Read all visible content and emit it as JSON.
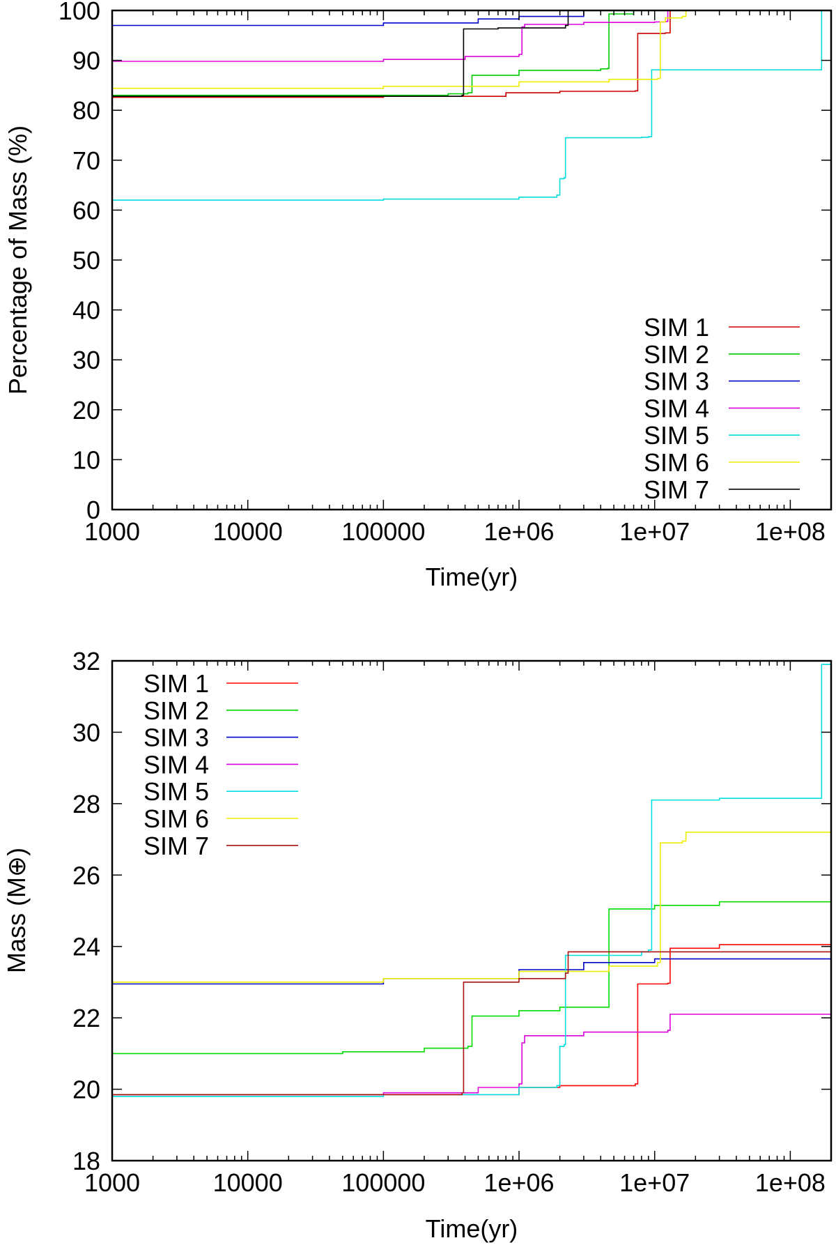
{
  "chart_data": [
    {
      "type": "line",
      "xlabel": "Time(yr)",
      "ylabel": "Percentage of Mass (%)",
      "xscale": "log",
      "xlim": [
        1000,
        200000000
      ],
      "ylim": [
        0,
        100
      ],
      "xticks": [
        1000,
        10000,
        100000,
        1000000,
        10000000,
        100000000
      ],
      "xtick_labels": [
        "1000",
        "10000",
        "100000",
        "1e+06",
        "1e+07",
        "1e+08"
      ],
      "yticks": [
        0,
        10,
        20,
        30,
        40,
        50,
        60,
        70,
        80,
        90,
        100
      ],
      "ytick_labels": [
        "0",
        "10",
        "20",
        "30",
        "40",
        "50",
        "60",
        "70",
        "80",
        "90",
        "100"
      ],
      "legend": "bottom-right",
      "grid": false,
      "series": [
        {
          "name": "SIM 1",
          "color": "#cc0000",
          "x": [
            1000,
            100000,
            800000,
            2000000,
            7200000,
            7500000,
            12000000,
            13000000,
            17000000,
            200000000
          ],
          "y": [
            82.6,
            82.8,
            83.5,
            83.8,
            83.9,
            95.4,
            95.5,
            100,
            100,
            100
          ]
        },
        {
          "name": "SIM 2",
          "color": "#00cc00",
          "x": [
            1000,
            300000,
            420000,
            450000,
            1000000,
            4000000,
            4500000,
            4600000,
            7000000,
            200000000
          ],
          "y": [
            83.0,
            83.3,
            83.5,
            87.0,
            88.0,
            88.3,
            88.4,
            99.3,
            100,
            100
          ]
        },
        {
          "name": "SIM 3",
          "color": "#0000cc",
          "x": [
            1000,
            20000,
            100000,
            500000,
            1000000,
            3000000,
            200000000
          ],
          "y": [
            97.0,
            97.0,
            97.5,
            98.3,
            98.8,
            100,
            100
          ]
        },
        {
          "name": "SIM 4",
          "color": "#dd00dd",
          "x": [
            1000,
            100000,
            400000,
            1000000,
            1050000,
            1100000,
            3000000,
            10000000,
            12000000,
            12500000,
            200000000
          ],
          "y": [
            89.8,
            90.2,
            90.8,
            91.2,
            96.7,
            97.2,
            97.6,
            97.7,
            97.8,
            100,
            100
          ]
        },
        {
          "name": "SIM 5",
          "color": "#00dddd",
          "x": [
            1000,
            100000,
            1000000,
            1900000,
            2000000,
            2150000,
            2200000,
            8000000,
            9000000,
            9500000,
            160000000,
            170000000,
            200000000
          ],
          "y": [
            62.0,
            62.2,
            62.6,
            63.0,
            66.3,
            66.5,
            74.5,
            74.6,
            74.7,
            88.1,
            88.1,
            100,
            100
          ]
        },
        {
          "name": "SIM 6",
          "color": "#eeee00",
          "x": [
            1000,
            100000,
            1000000,
            4600000,
            10500000,
            11000000,
            12000000,
            16000000,
            17000000,
            200000000
          ],
          "y": [
            84.4,
            84.8,
            85.7,
            86.2,
            86.4,
            97.7,
            98.5,
            98.8,
            100,
            100
          ]
        },
        {
          "name": "SIM 7",
          "color": "#000000",
          "x": [
            1000,
            380000,
            390000,
            700000,
            2200000,
            2300000,
            200000000
          ],
          "y": [
            82.8,
            83.0,
            96.3,
            96.5,
            97.0,
            100,
            100
          ]
        }
      ]
    },
    {
      "type": "line",
      "xlabel": "Time(yr)",
      "ylabel": "Mass (M⊕)",
      "xscale": "log",
      "xlim": [
        1000,
        200000000
      ],
      "ylim": [
        18,
        32
      ],
      "xticks": [
        1000,
        10000,
        100000,
        1000000,
        10000000,
        100000000
      ],
      "xtick_labels": [
        "1000",
        "10000",
        "100000",
        "1e+06",
        "1e+07",
        "1e+08"
      ],
      "yticks": [
        18,
        20,
        22,
        24,
        26,
        28,
        30,
        32
      ],
      "ytick_labels": [
        "18",
        "20",
        "22",
        "24",
        "26",
        "28",
        "30",
        "32"
      ],
      "legend": "top-left",
      "grid": false,
      "series": [
        {
          "name": "SIM 1",
          "color": "#ff0000",
          "x": [
            1000,
            100000,
            1000000,
            2000000,
            7200000,
            7500000,
            12500000,
            13000000,
            30000000,
            200000000
          ],
          "y": [
            19.85,
            19.85,
            20.05,
            20.1,
            20.15,
            22.95,
            22.97,
            23.95,
            24.05,
            24.05
          ]
        },
        {
          "name": "SIM 2",
          "color": "#00dd00",
          "x": [
            1000,
            50000,
            200000,
            420000,
            450000,
            1000000,
            2000000,
            4400000,
            4600000,
            10000000,
            30000000,
            200000000
          ],
          "y": [
            21.0,
            21.05,
            21.15,
            21.2,
            22.05,
            22.2,
            22.3,
            22.3,
            25.05,
            25.15,
            25.25,
            25.25
          ]
        },
        {
          "name": "SIM 3",
          "color": "#0000cc",
          "x": [
            1000,
            20000,
            100000,
            1000000,
            3000000,
            10000000,
            200000000
          ],
          "y": [
            22.95,
            22.95,
            23.1,
            23.35,
            23.55,
            23.65,
            23.7
          ]
        },
        {
          "name": "SIM 4",
          "color": "#dd00dd",
          "x": [
            1000,
            100000,
            500000,
            1000000,
            1050000,
            1100000,
            3000000,
            8000000,
            12500000,
            13000000,
            200000000
          ],
          "y": [
            19.85,
            19.9,
            20.05,
            20.15,
            21.3,
            21.5,
            21.6,
            21.6,
            21.65,
            22.1,
            22.1
          ]
        },
        {
          "name": "SIM 5",
          "color": "#00e0e0",
          "x": [
            1000,
            100000,
            1000000,
            1900000,
            2000000,
            2150000,
            2200000,
            8000000,
            9000000,
            9500000,
            30000000,
            160000000,
            170000000,
            200000000
          ],
          "y": [
            19.8,
            19.85,
            20.05,
            20.1,
            21.2,
            21.25,
            23.75,
            23.85,
            23.9,
            28.1,
            28.15,
            28.15,
            31.9,
            31.9
          ]
        },
        {
          "name": "SIM 6",
          "color": "#eeee00",
          "x": [
            1000,
            100000,
            1000000,
            4600000,
            10500000,
            11000000,
            16000000,
            17000000,
            200000000
          ],
          "y": [
            23.0,
            23.1,
            23.3,
            23.45,
            23.55,
            26.9,
            26.95,
            27.2,
            27.2
          ]
        },
        {
          "name": "SIM 7",
          "color": "#aa1111",
          "x": [
            1000,
            380000,
            390000,
            1000000,
            2200000,
            2300000,
            200000000
          ],
          "y": [
            19.85,
            19.9,
            23.0,
            23.1,
            23.25,
            23.85,
            23.9
          ]
        }
      ]
    }
  ]
}
